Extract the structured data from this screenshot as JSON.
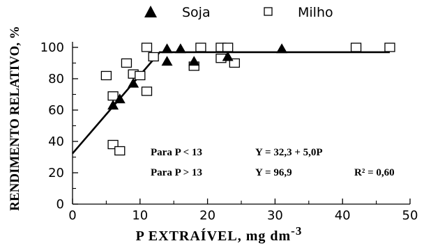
{
  "chart_data": {
    "type": "scatter",
    "xlabel": "P EXTRAÍVEL, mg dm",
    "xlabel_sup": "-3",
    "ylabel": "RENDIMENTO RELATIVO, %",
    "xlim": [
      0,
      50
    ],
    "ylim": [
      0,
      100
    ],
    "x_ticks": [
      "0",
      "10",
      "20",
      "30",
      "40",
      "50"
    ],
    "y_ticks": [
      "0",
      "20",
      "40",
      "60",
      "80",
      "100"
    ],
    "grid": false,
    "legend_position": "top",
    "series": [
      {
        "name": "Soja",
        "marker": "filled-triangle",
        "points": [
          [
            6,
            63
          ],
          [
            7,
            67
          ],
          [
            9,
            77
          ],
          [
            14,
            99
          ],
          [
            14,
            91
          ],
          [
            16,
            99
          ],
          [
            18,
            91
          ],
          [
            23,
            94
          ],
          [
            31,
            99
          ]
        ]
      },
      {
        "name": "Milho",
        "marker": "open-square",
        "points": [
          [
            5,
            82
          ],
          [
            6,
            69
          ],
          [
            6,
            38
          ],
          [
            7,
            34
          ],
          [
            8,
            90
          ],
          [
            9,
            83
          ],
          [
            10,
            82
          ],
          [
            11,
            100
          ],
          [
            11,
            72
          ],
          [
            12,
            94
          ],
          [
            18,
            88
          ],
          [
            19,
            100
          ],
          [
            22,
            100
          ],
          [
            22,
            93
          ],
          [
            23,
            100
          ],
          [
            24,
            90
          ],
          [
            42,
            100
          ],
          [
            47,
            100
          ]
        ]
      }
    ],
    "model": {
      "segments": [
        {
          "x0": 0,
          "y0": 32.3,
          "x1": 13,
          "y1": 97.3
        },
        {
          "x0": 13,
          "y0": 96.9,
          "x1": 47,
          "y1": 96.9
        }
      ]
    },
    "annotations": [
      {
        "condition": "Para P < 13",
        "equation": "Y = 32,3 + 5,0P",
        "r2": ""
      },
      {
        "condition": "Para P > 13",
        "equation": "Y = 96,9",
        "r2": "R² = 0,60"
      }
    ]
  }
}
